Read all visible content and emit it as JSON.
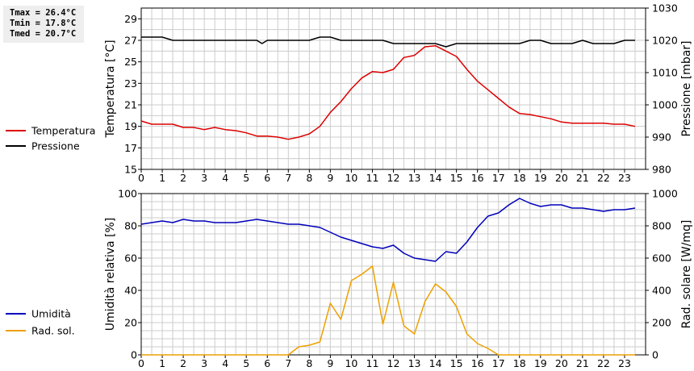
{
  "stats": {
    "tmax": "Tmax = 26.4°C",
    "tmin": "Tmin = 17.8°C",
    "tmed": "Tmed = 20.7°C"
  },
  "colors": {
    "temperature": "#dd0000",
    "pressure": "#000000",
    "humidity": "#0000bb",
    "solar": "#eea000",
    "grid": "#cccccc"
  },
  "chart_data": [
    {
      "type": "line",
      "ylabel": "Temperatura [°C]",
      "y2label": "Pressione [mbar]",
      "xlim": [
        0,
        24
      ],
      "ylim": [
        15,
        30
      ],
      "y2lim": [
        980,
        1030
      ],
      "x_ticks": [
        "0",
        "1",
        "2",
        "3",
        "4",
        "5",
        "6",
        "7",
        "8",
        "9",
        "10",
        "11",
        "12",
        "13",
        "14",
        "15",
        "16",
        "17",
        "18",
        "19",
        "20",
        "21",
        "22",
        "23"
      ],
      "y_ticks": [
        "15",
        "17",
        "19",
        "21",
        "23",
        "25",
        "27",
        "29"
      ],
      "y2_ticks": [
        "980",
        "990",
        "1000",
        "1010",
        "1020",
        "1030"
      ],
      "grid": true,
      "legend_position": "left",
      "series": [
        {
          "name": "Temperatura",
          "axis": "left",
          "x": [
            0,
            0.5,
            1,
            1.5,
            2,
            2.5,
            3,
            3.5,
            4,
            4.5,
            5,
            5.5,
            6,
            6.5,
            7,
            7.5,
            8,
            8.5,
            9,
            9.5,
            10,
            10.5,
            11,
            11.5,
            12,
            12.5,
            13,
            13.5,
            14,
            14.5,
            15,
            15.5,
            16,
            16.5,
            17,
            17.5,
            18,
            18.5,
            19,
            19.5,
            20,
            20.5,
            21,
            21.5,
            22,
            22.5,
            23,
            23.5
          ],
          "y": [
            19.5,
            19.2,
            19.2,
            19.2,
            18.9,
            18.9,
            18.7,
            18.9,
            18.7,
            18.6,
            18.4,
            18.1,
            18.1,
            18.0,
            17.8,
            18.0,
            18.3,
            19.0,
            20.3,
            21.3,
            22.5,
            23.5,
            24.1,
            24.0,
            24.3,
            25.4,
            25.6,
            26.4,
            26.5,
            26.0,
            25.5,
            24.3,
            23.2,
            22.4,
            21.6,
            20.8,
            20.2,
            20.1,
            19.9,
            19.7,
            19.4,
            19.3,
            19.3,
            19.3,
            19.3,
            19.2,
            19.2,
            19.0
          ]
        },
        {
          "name": "Pressione",
          "axis": "right",
          "x": [
            0,
            0.5,
            1,
            1.5,
            2,
            2.5,
            3,
            3.5,
            4,
            4.5,
            5,
            5.5,
            5.75,
            6,
            6.5,
            7,
            7.5,
            8,
            8.5,
            9,
            9.5,
            10,
            10.5,
            11,
            11.5,
            12,
            12.5,
            13,
            13.5,
            14,
            14.5,
            15,
            15.5,
            16,
            16.5,
            17,
            17.5,
            18,
            18.5,
            19,
            19.5,
            20,
            20.5,
            21,
            21.5,
            22,
            22.5,
            23,
            23.5
          ],
          "y": [
            1021,
            1021,
            1021,
            1020,
            1020,
            1020,
            1020,
            1020,
            1020,
            1020,
            1020,
            1020,
            1019,
            1020,
            1020,
            1020,
            1020,
            1020,
            1021,
            1021,
            1020,
            1020,
            1020,
            1020,
            1020,
            1019,
            1019,
            1019,
            1019,
            1019,
            1018,
            1019,
            1019,
            1019,
            1019,
            1019,
            1019,
            1019,
            1020,
            1020,
            1019,
            1019,
            1019,
            1020,
            1019,
            1019,
            1019,
            1020,
            1020
          ]
        }
      ]
    },
    {
      "type": "line",
      "ylabel": "Umidità relativa [%]",
      "y2label": "Rad. solare [W/mq]",
      "xlim": [
        0,
        24
      ],
      "ylim": [
        0,
        100
      ],
      "y2lim": [
        0,
        1000
      ],
      "x_ticks": [
        "0",
        "1",
        "2",
        "3",
        "4",
        "5",
        "6",
        "7",
        "8",
        "9",
        "10",
        "11",
        "12",
        "13",
        "14",
        "15",
        "16",
        "17",
        "18",
        "19",
        "20",
        "21",
        "22",
        "23"
      ],
      "y_ticks": [
        "0",
        "20",
        "40",
        "60",
        "80",
        "100"
      ],
      "y2_ticks": [
        "0",
        "200",
        "400",
        "600",
        "800",
        "1000"
      ],
      "grid": true,
      "legend_position": "left",
      "series": [
        {
          "name": "Umidità",
          "axis": "left",
          "x": [
            0,
            0.5,
            1,
            1.5,
            2,
            2.5,
            3,
            3.5,
            4,
            4.5,
            5,
            5.5,
            6,
            6.5,
            7,
            7.5,
            8,
            8.5,
            9,
            9.5,
            10,
            10.5,
            11,
            11.5,
            12,
            12.5,
            13,
            13.5,
            14,
            14.5,
            15,
            15.5,
            16,
            16.5,
            17,
            17.5,
            18,
            18.5,
            19,
            19.5,
            20,
            20.5,
            21,
            21.5,
            22,
            22.5,
            23,
            23.5
          ],
          "y": [
            81,
            82,
            83,
            82,
            84,
            83,
            83,
            82,
            82,
            82,
            83,
            84,
            83,
            82,
            81,
            81,
            80,
            79,
            76,
            73,
            71,
            69,
            67,
            66,
            68,
            63,
            60,
            59,
            58,
            64,
            63,
            70,
            79,
            86,
            88,
            93,
            97,
            94,
            92,
            93,
            93,
            91,
            91,
            90,
            89,
            90,
            90,
            91
          ]
        },
        {
          "name": "Rad. sol.",
          "axis": "right",
          "x": [
            0,
            1,
            2,
            3,
            4,
            5,
            6,
            7,
            7.5,
            8,
            8.5,
            9,
            9.5,
            10,
            10.5,
            11,
            11.5,
            12,
            12.5,
            13,
            13.5,
            14,
            14.5,
            15,
            15.5,
            16,
            16.5,
            17,
            18,
            19,
            20,
            21,
            22,
            23,
            23.5
          ],
          "y": [
            0,
            0,
            0,
            0,
            0,
            0,
            0,
            0,
            50,
            60,
            80,
            320,
            220,
            460,
            500,
            550,
            190,
            450,
            180,
            130,
            330,
            440,
            390,
            300,
            130,
            70,
            40,
            0,
            0,
            0,
            0,
            0,
            0,
            0,
            0
          ]
        }
      ]
    }
  ]
}
